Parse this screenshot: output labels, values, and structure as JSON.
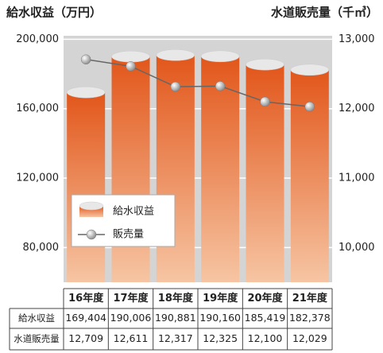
{
  "chart_data": {
    "type": "bar",
    "y_label": "給水収益（万円）",
    "y2_label": "水道販売量（千㎥）",
    "categories": [
      "16年度",
      "17年度",
      "18年度",
      "19年度",
      "20年度",
      "21年度"
    ],
    "series": [
      {
        "name": "給水収益",
        "type": "bar",
        "color": "#e2561a",
        "values": [
          169404,
          190006,
          190881,
          190160,
          185419,
          182378
        ],
        "value_labels": [
          "169,404",
          "190,006",
          "190,881",
          "190,160",
          "185,419",
          "182,378"
        ]
      },
      {
        "name": "販売量",
        "type": "line",
        "axis": "y2",
        "color": "#666666",
        "values": [
          12709,
          12611,
          12317,
          12325,
          12100,
          12029
        ],
        "value_labels": [
          "12,709",
          "12,611",
          "12,317",
          "12,325",
          "12,100",
          "12,029"
        ]
      }
    ],
    "table_row_labels": [
      "給水収益",
      "水道販売量"
    ],
    "ylim": [
      60000,
      202000
    ],
    "yticks": [
      {
        "value": 80000,
        "label": "80,000"
      },
      {
        "value": 120000,
        "label": "120,000"
      },
      {
        "value": 160000,
        "label": "160,000"
      },
      {
        "value": 200000,
        "label": "200,000"
      }
    ],
    "y2lim": [
      9500,
      13050
    ],
    "y2ticks": [
      {
        "value": 10000,
        "label": "10,000"
      },
      {
        "value": 11000,
        "label": "11,000"
      },
      {
        "value": 12000,
        "label": "12,000"
      },
      {
        "value": 13000,
        "label": "13,000"
      }
    ],
    "grid": true
  }
}
